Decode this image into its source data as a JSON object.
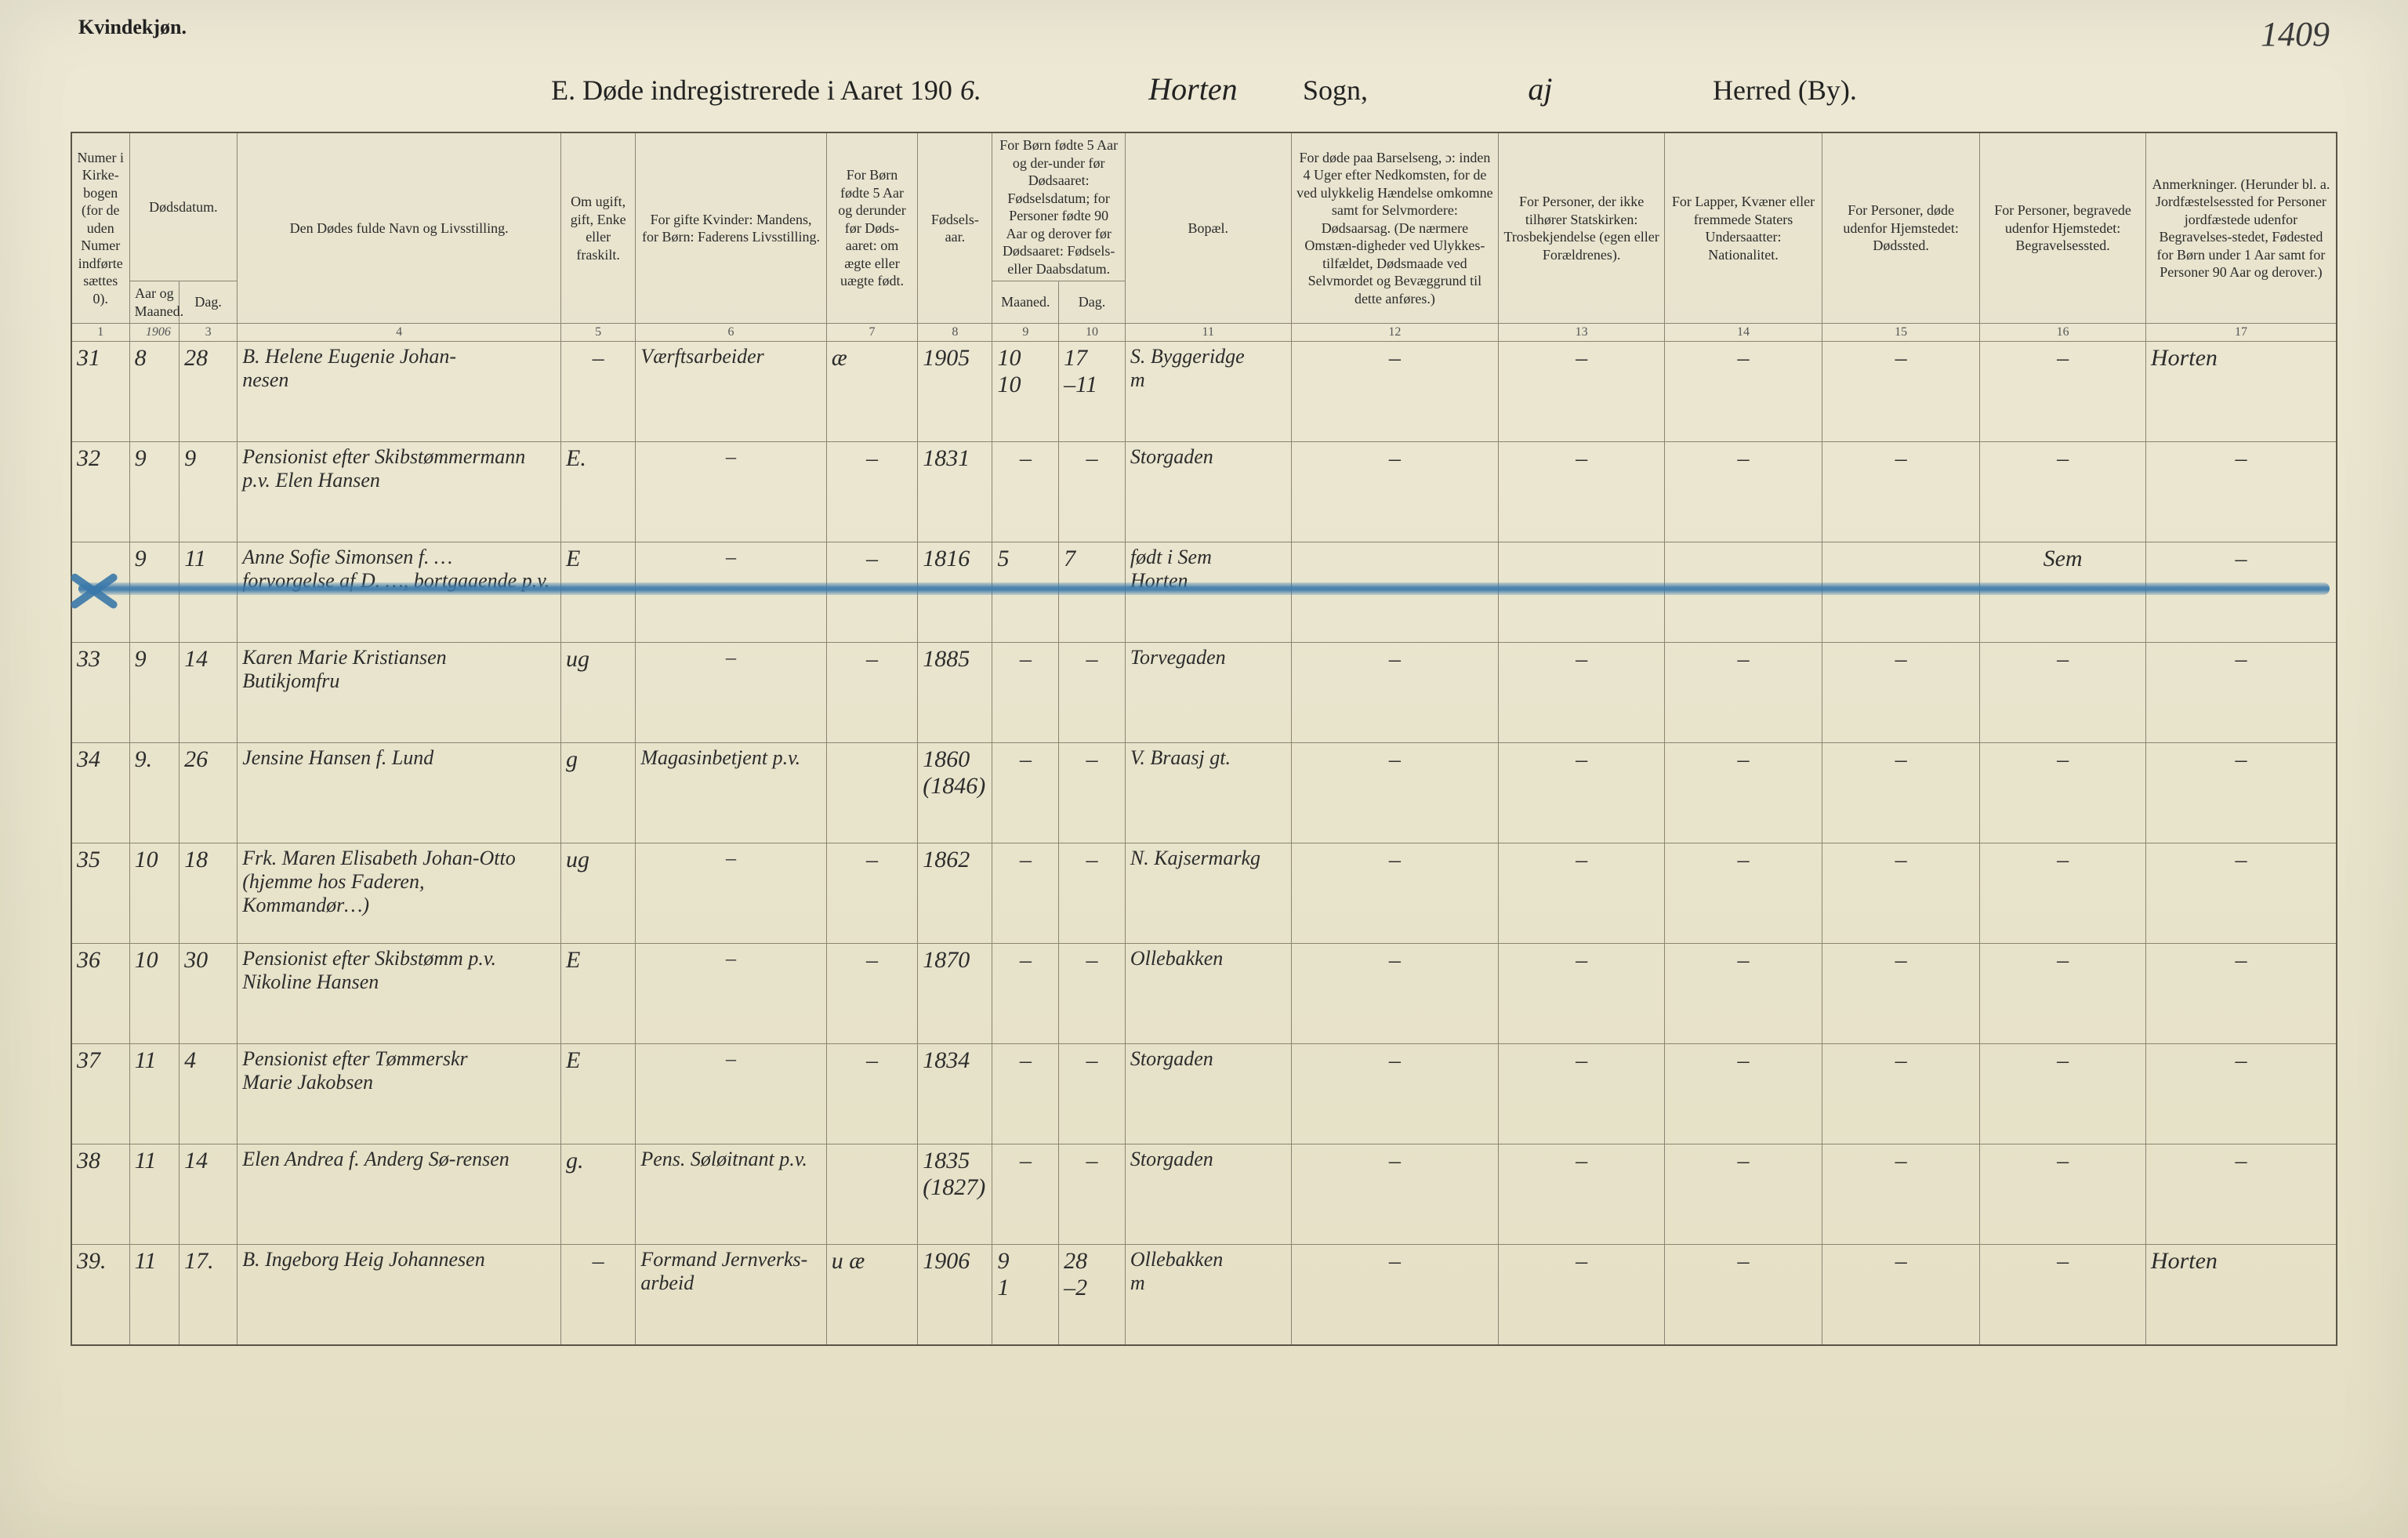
{
  "page": {
    "gender_label": "Kvindekjøn.",
    "handwritten_page_no": "1409",
    "title_prefix": "E.  Døde indregistrerede i Aaret 190",
    "title_year_hand": "6.",
    "sogn_hand": "Horten",
    "sogn_label": "Sogn,",
    "herred_hand": "aj",
    "herred_label": "Herred (By)."
  },
  "headers": {
    "c1": "Numer i Kirke-bogen (for de uden Numer indførte sættes 0).",
    "c2_3_group": "Dødsdatum.",
    "c2": "Aar og Maaned.",
    "c3": "Dag.",
    "c4": "Den Dødes fulde Navn og Livsstilling.",
    "c5": "Om ugift, gift, Enke eller fraskilt.",
    "c6": "For gifte Kvinder: Mandens, for Børn: Faderens Livsstilling.",
    "c7": "For Børn fødte 5 Aar og derunder før Døds-aaret: om ægte eller uægte født.",
    "c8": "Fødsels-aar.",
    "c9_10_group": "For Børn fødte 5 Aar og der-under før Dødsaaret: Fødselsdatum; for Personer fødte 90 Aar og derover før Dødsaaret: Fødsels- eller Daabsdatum.",
    "c9": "Maaned.",
    "c10": "Dag.",
    "c11": "Bopæl.",
    "c12": "For døde paa Barselseng, ɔ: inden 4 Uger efter Nedkomsten, for de ved ulykkelig Hændelse omkomne samt for Selvmordere: Dødsaarsag. (De nærmere Omstæn-digheder ved Ulykkes-tilfældet, Dødsmaade ved Selvmordet og Bevæggrund til dette anføres.)",
    "c13": "For Personer, der ikke tilhører Statskirken: Trosbekjendelse (egen eller Forældrenes).",
    "c14": "For Lapper, Kvæner eller fremmede Staters Undersaatter: Nationalitet.",
    "c15": "For Personer, døde udenfor Hjemstedet: Dødssted.",
    "c16": "For Personer, begravede udenfor Hjemstedet: Begravelsessted.",
    "c17": "Anmerkninger. (Herunder bl. a. Jordfæstelsessted for Personer jordfæstede udenfor Begravelses-stedet, Fødested for Børn under 1 Aar samt for Personer 90 Aar og derover.)"
  },
  "colnums": [
    "1",
    "",
    "3",
    "4",
    "5",
    "6",
    "7",
    "8",
    "9",
    "10",
    "11",
    "12",
    "13",
    "14",
    "15",
    "16",
    "17"
  ],
  "year_written": "1906",
  "rows": [
    {
      "num": "31",
      "mon": "8",
      "day": "28",
      "name": "B. Helene Eugenie Johan-\nnesen",
      "status": "–",
      "spouse": "Værftsarbeider",
      "legit": "æ",
      "birth": "1905",
      "bm": "10\n10",
      "bd": "17\n–11",
      "bopael": "S. Byggeridge\nm",
      "c12": "–",
      "c13": "–",
      "c14": "–",
      "c15": "–",
      "c16": "–",
      "remark": "Horten"
    },
    {
      "num": "32",
      "mon": "9",
      "day": "9",
      "name": "Pensionist efter Skibstømmermann p.v. Elen Hansen",
      "status": "E.",
      "spouse": "–",
      "legit": "–",
      "birth": "1831",
      "bm": "–",
      "bd": "–",
      "bopael": "Storgaden",
      "c12": "–",
      "c13": "–",
      "c14": "–",
      "c15": "–",
      "c16": "–",
      "remark": "–"
    },
    {
      "struck": true,
      "num": "",
      "mon": "9",
      "day": "11",
      "name": "Anne Sofie Simonsen f. …\nforvorgelse af D. …, bortgaaende p.v.",
      "status": "E",
      "spouse": "–",
      "legit": "–",
      "birth": "1816",
      "bm": "5",
      "bd": "7",
      "bopael": "født i Sem\nHorten",
      "c12": "",
      "c13": "",
      "c14": "",
      "c15": "",
      "c16": "Sem",
      "remark": "–"
    },
    {
      "num": "33",
      "mon": "9",
      "day": "14",
      "name": "Karen Marie Kristiansen\nButikjomfru",
      "status": "ug",
      "spouse": "–",
      "legit": "–",
      "birth": "1885",
      "bm": "–",
      "bd": "–",
      "bopael": "Torvegaden",
      "c12": "–",
      "c13": "–",
      "c14": "–",
      "c15": "–",
      "c16": "–",
      "remark": "–"
    },
    {
      "num": "34",
      "mon": "9.",
      "day": "26",
      "name": "Jensine Hansen f. Lund",
      "status": "g",
      "spouse": "Magasinbetjent p.v.",
      "legit": "",
      "birth": "1860\n(1846)",
      "bm": "–",
      "bd": "–",
      "bopael": "V. Braasj gt.",
      "c12": "–",
      "c13": "–",
      "c14": "–",
      "c15": "–",
      "c16": "–",
      "remark": "–"
    },
    {
      "num": "35",
      "mon": "10",
      "day": "18",
      "name": "Frk. Maren Elisabeth Johan-Otto (hjemme hos Faderen, Kommandør…)",
      "status": "ug",
      "spouse": "–",
      "legit": "–",
      "birth": "1862",
      "bm": "–",
      "bd": "–",
      "bopael": "N. Kajsermarkg",
      "c12": "–",
      "c13": "–",
      "c14": "–",
      "c15": "–",
      "c16": "–",
      "remark": "–"
    },
    {
      "num": "36",
      "mon": "10",
      "day": "30",
      "name": "Pensionist efter Skibstømm p.v.\nNikoline Hansen",
      "status": "E",
      "spouse": "–",
      "legit": "–",
      "birth": "1870",
      "bm": "–",
      "bd": "–",
      "bopael": "Ollebakken",
      "c12": "–",
      "c13": "–",
      "c14": "–",
      "c15": "–",
      "c16": "–",
      "remark": "–"
    },
    {
      "num": "37",
      "mon": "11",
      "day": "4",
      "name": "Pensionist efter Tømmerskr\nMarie Jakobsen",
      "status": "E",
      "spouse": "–",
      "legit": "–",
      "birth": "1834",
      "bm": "–",
      "bd": "–",
      "bopael": "Storgaden",
      "c12": "–",
      "c13": "–",
      "c14": "–",
      "c15": "–",
      "c16": "–",
      "remark": "–"
    },
    {
      "num": "38",
      "mon": "11",
      "day": "14",
      "name": "Elen Andrea f. Anderg Sø-rensen",
      "status": "g.",
      "spouse": "Pens. Søløitnant p.v.",
      "legit": "",
      "birth": "1835\n(1827)",
      "bm": "–",
      "bd": "–",
      "bopael": "Storgaden",
      "c12": "–",
      "c13": "–",
      "c14": "–",
      "c15": "–",
      "c16": "–",
      "remark": "–"
    },
    {
      "num": "39.",
      "mon": "11",
      "day": "17.",
      "name": "B. Ingeborg Heig Johannesen",
      "status": "–",
      "spouse": "Formand Jernverks-arbeid",
      "legit": "u æ",
      "birth": "1906",
      "bm": "9\n1",
      "bd": "28\n–2",
      "bopael": "Ollebakken\nm",
      "c12": "–",
      "c13": "–",
      "c14": "–",
      "c15": "–",
      "c16": "–",
      "remark": "Horten"
    }
  ],
  "style": {
    "paper_bg": "#e8e4cc",
    "rule_color": "#8a8472",
    "frame_color": "#5a5548",
    "ink_color": "#2c2c2c",
    "crayon_color": "#3a78aa"
  }
}
